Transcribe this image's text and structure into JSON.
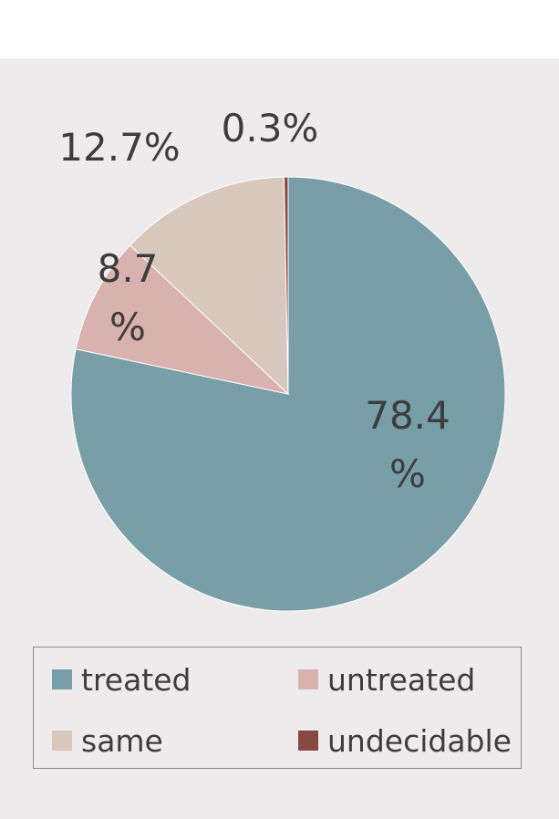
{
  "chart_data": {
    "type": "pie",
    "slices": [
      {
        "name": "treated",
        "value": 78.4,
        "label_lines": [
          "78.4",
          "%"
        ],
        "color": "#789fa8"
      },
      {
        "name": "untreated",
        "value": 8.7,
        "label_lines": [
          "8.7",
          "%"
        ],
        "color": "#d9b1af"
      },
      {
        "name": "same",
        "value": 12.7,
        "label_lines": [
          "12.7%"
        ],
        "color": "#d8c7bc"
      },
      {
        "name": "undecidable",
        "value": 0.3,
        "label_lines": [
          "0.3%"
        ],
        "color": "#884843"
      }
    ],
    "legend": {
      "position": "bottom",
      "entries": [
        "treated",
        "untreated",
        "same",
        "undecidable"
      ]
    }
  }
}
